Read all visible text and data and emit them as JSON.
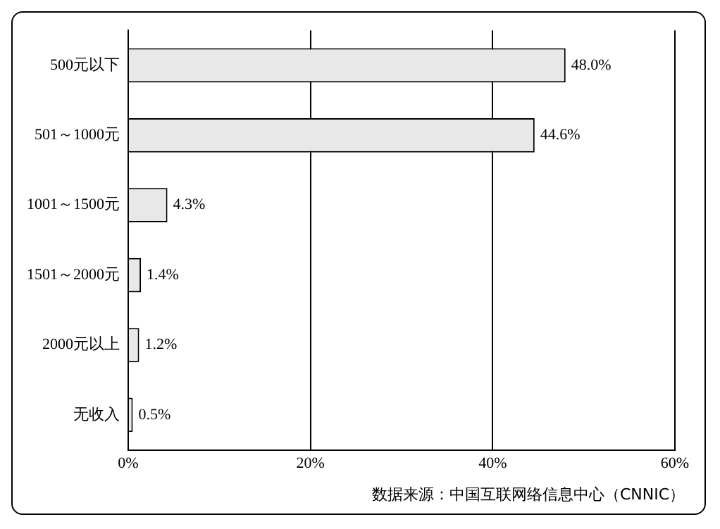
{
  "chart_data": {
    "type": "bar",
    "orientation": "horizontal",
    "categories": [
      "500元以下",
      "501～1000元",
      "1001～1500元",
      "1501～2000元",
      "2000元以上",
      "无收入"
    ],
    "values": [
      48.0,
      44.6,
      4.3,
      1.4,
      1.2,
      0.5
    ],
    "value_labels": [
      "48.0%",
      "44.6%",
      "4.3%",
      "1.4%",
      "1.2%",
      "0.5%"
    ],
    "color": "#e8e8e8",
    "xlim": [
      0,
      60
    ],
    "xticks": [
      {
        "value": 0,
        "label": "0%"
      },
      {
        "value": 20,
        "label": "20%"
      },
      {
        "value": 40,
        "label": "40%"
      },
      {
        "value": 60,
        "label": "60%"
      }
    ],
    "grid": "x",
    "legend": false,
    "annotations": [
      "数据来源：中国互联网络信息中心（CNNIC）"
    ]
  }
}
